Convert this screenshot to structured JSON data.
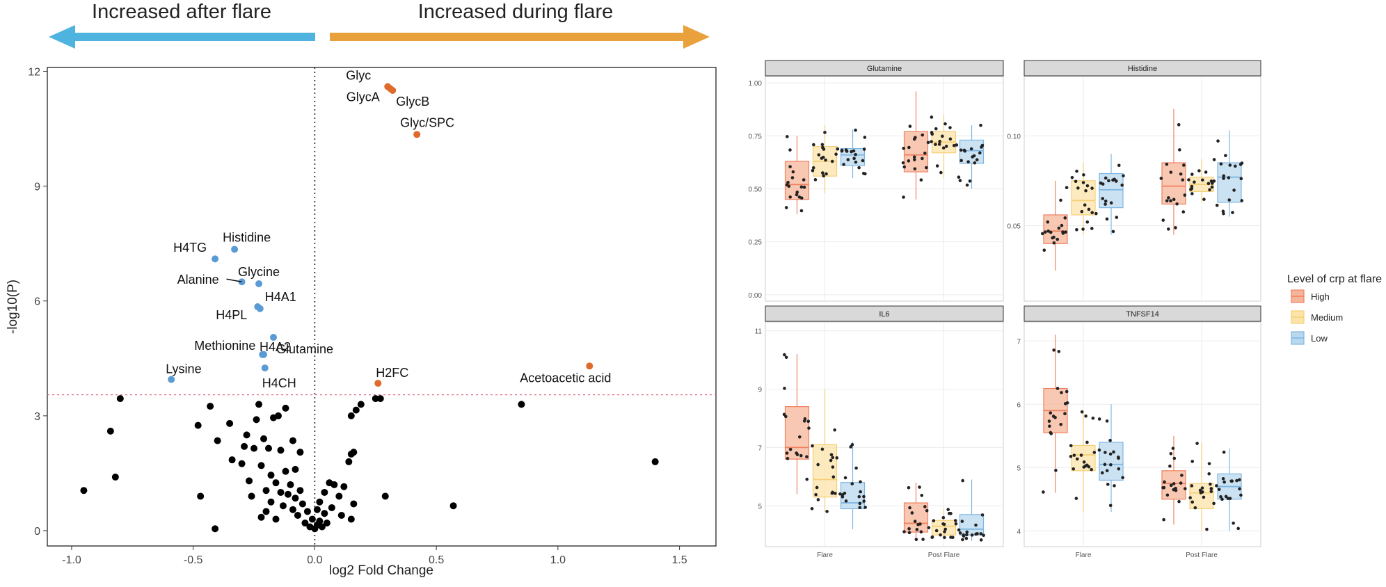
{
  "header": {
    "left_arrow_label": "Increased after flare",
    "right_arrow_label": "Increased during flare",
    "left_color": "#4FB3E0",
    "right_color": "#E9A23B"
  },
  "chart_data": [
    {
      "type": "scatter",
      "title": "",
      "xlabel": "log2 Fold Change",
      "ylabel": "-log10(P)",
      "xlim": [
        -1.1,
        1.65
      ],
      "ylim": [
        -0.4,
        12.1
      ],
      "xticks": [
        -1.0,
        -0.5,
        0.0,
        0.5,
        1.0,
        1.5
      ],
      "yticks": [
        0,
        3,
        6,
        9,
        12
      ],
      "significance_threshold": 3.55,
      "vertical_line_x": 0,
      "grid": false,
      "colors": {
        "up": "#E06A2B",
        "down": "#5B9BD5",
        "ns": "#000000",
        "threshold": "#E06A80"
      },
      "labeled_points": [
        {
          "label": "Glyc",
          "x": 0.3,
          "y": 11.6,
          "group": "up"
        },
        {
          "label": "GlycA",
          "x": 0.31,
          "y": 11.55,
          "group": "up"
        },
        {
          "label": "GlycB",
          "x": 0.32,
          "y": 11.5,
          "group": "up"
        },
        {
          "label": "Glyc/SPC",
          "x": 0.42,
          "y": 10.35,
          "group": "up"
        },
        {
          "label": "H2FC",
          "x": 0.26,
          "y": 3.85,
          "group": "up"
        },
        {
          "label": "Acetoacetic acid",
          "x": 1.13,
          "y": 4.3,
          "group": "up"
        },
        {
          "label": "Histidine",
          "x": -0.33,
          "y": 7.35,
          "group": "down"
        },
        {
          "label": "H4TG",
          "x": -0.41,
          "y": 7.1,
          "group": "down"
        },
        {
          "label": "Alanine",
          "x": -0.3,
          "y": 6.5,
          "group": "down"
        },
        {
          "label": "Glycine",
          "x": -0.23,
          "y": 6.45,
          "group": "down"
        },
        {
          "label": "H4PL",
          "x": -0.235,
          "y": 5.85,
          "group": "down"
        },
        {
          "label": "H4A1",
          "x": -0.225,
          "y": 5.8,
          "group": "down"
        },
        {
          "label": "H4A2",
          "x": -0.17,
          "y": 5.05,
          "group": "down"
        },
        {
          "label": "Methionine",
          "x": -0.215,
          "y": 4.6,
          "group": "down"
        },
        {
          "label": "Glutamine",
          "x": -0.21,
          "y": 4.6,
          "group": "down"
        },
        {
          "label": "H4CH",
          "x": -0.205,
          "y": 4.25,
          "group": "down"
        },
        {
          "label": "Lysine",
          "x": -0.59,
          "y": 3.95,
          "group": "down"
        }
      ],
      "ns_points": [
        [
          -0.95,
          1.05
        ],
        [
          -0.84,
          2.6
        ],
        [
          -0.82,
          1.4
        ],
        [
          -0.8,
          3.45
        ],
        [
          -0.48,
          2.75
        ],
        [
          -0.47,
          0.9
        ],
        [
          -0.43,
          3.25
        ],
        [
          -0.41,
          0.05
        ],
        [
          -0.4,
          2.35
        ],
        [
          -0.35,
          2.8
        ],
        [
          -0.34,
          1.85
        ],
        [
          -0.3,
          1.75
        ],
        [
          -0.29,
          2.2
        ],
        [
          -0.28,
          2.5
        ],
        [
          -0.27,
          1.3
        ],
        [
          -0.26,
          0.9
        ],
        [
          -0.25,
          2.15
        ],
        [
          -0.24,
          2.9
        ],
        [
          -0.23,
          3.3
        ],
        [
          -0.22,
          1.7
        ],
        [
          -0.22,
          0.35
        ],
        [
          -0.21,
          2.4
        ],
        [
          -0.2,
          1.05
        ],
        [
          -0.2,
          0.5
        ],
        [
          -0.19,
          2.15
        ],
        [
          -0.18,
          1.45
        ],
        [
          -0.18,
          0.75
        ],
        [
          -0.17,
          2.95
        ],
        [
          -0.16,
          1.25
        ],
        [
          -0.16,
          0.3
        ],
        [
          -0.15,
          3.0
        ],
        [
          -0.14,
          2.1
        ],
        [
          -0.14,
          1.0
        ],
        [
          -0.13,
          0.65
        ],
        [
          -0.12,
          1.55
        ],
        [
          -0.12,
          3.2
        ],
        [
          -0.11,
          0.95
        ],
        [
          -0.1,
          1.2
        ],
        [
          -0.09,
          0.55
        ],
        [
          -0.09,
          2.35
        ],
        [
          -0.08,
          0.85
        ],
        [
          -0.08,
          1.6
        ],
        [
          -0.07,
          0.4
        ],
        [
          -0.06,
          1.05
        ],
        [
          -0.06,
          2.05
        ],
        [
          -0.05,
          0.7
        ],
        [
          -0.04,
          0.2
        ],
        [
          -0.03,
          0.5
        ],
        [
          -0.02,
          0.1
        ],
        [
          -0.01,
          0.3
        ],
        [
          0.0,
          0.05
        ],
        [
          0.01,
          0.55
        ],
        [
          0.01,
          0.15
        ],
        [
          0.02,
          0.25
        ],
        [
          0.02,
          0.75
        ],
        [
          0.03,
          0.1
        ],
        [
          0.04,
          0.45
        ],
        [
          0.04,
          1.0
        ],
        [
          0.05,
          0.2
        ],
        [
          0.06,
          1.25
        ],
        [
          0.07,
          0.6
        ],
        [
          0.08,
          1.2
        ],
        [
          0.1,
          0.9
        ],
        [
          0.11,
          0.4
        ],
        [
          0.12,
          1.15
        ],
        [
          0.14,
          1.8
        ],
        [
          0.15,
          0.3
        ],
        [
          0.15,
          2.0
        ],
        [
          0.16,
          0.7
        ],
        [
          0.16,
          2.05
        ],
        [
          0.15,
          3.0
        ],
        [
          0.17,
          3.15
        ],
        [
          0.19,
          3.3
        ],
        [
          0.25,
          3.45
        ],
        [
          0.27,
          3.45
        ],
        [
          0.29,
          0.9
        ],
        [
          0.57,
          0.65
        ],
        [
          0.85,
          3.3
        ],
        [
          1.4,
          1.8
        ]
      ]
    },
    {
      "type": "box",
      "title": "Glutamine",
      "categories": [
        "Flare",
        "Post Flare"
      ],
      "ylim": [
        -0.03,
        1.03
      ],
      "yticks": [
        "0.00",
        "0.25",
        "0.50",
        "0.75",
        "1.00"
      ],
      "series": [
        {
          "name": "High",
          "values": [
            [
              0.38,
              0.45,
              0.52,
              0.63,
              0.75
            ],
            [
              0.45,
              0.58,
              0.66,
              0.77,
              0.96
            ]
          ]
        },
        {
          "name": "Medium",
          "values": [
            [
              0.48,
              0.56,
              0.63,
              0.7,
              0.8
            ],
            [
              0.55,
              0.67,
              0.72,
              0.77,
              0.85
            ]
          ]
        },
        {
          "name": "Low",
          "values": [
            [
              0.55,
              0.61,
              0.66,
              0.69,
              0.78
            ],
            [
              0.5,
              0.62,
              0.68,
              0.73,
              0.8
            ]
          ]
        }
      ]
    },
    {
      "type": "box",
      "title": "Histidine",
      "categories": [
        "Flare",
        "Post Flare"
      ],
      "ylim": [
        0.008,
        0.133
      ],
      "yticks": [
        "0.05",
        "0.10"
      ],
      "series": [
        {
          "name": "High",
          "values": [
            [
              0.025,
              0.04,
              0.047,
              0.056,
              0.075
            ],
            [
              0.045,
              0.062,
              0.072,
              0.085,
              0.115
            ]
          ]
        },
        {
          "name": "Medium",
          "values": [
            [
              0.045,
              0.056,
              0.064,
              0.075,
              0.085
            ],
            [
              0.063,
              0.069,
              0.073,
              0.077,
              0.087
            ]
          ]
        },
        {
          "name": "Low",
          "values": [
            [
              0.045,
              0.06,
              0.07,
              0.079,
              0.09
            ],
            [
              0.055,
              0.063,
              0.077,
              0.085,
              0.103
            ]
          ]
        }
      ]
    },
    {
      "type": "box",
      "title": "IL6",
      "categories": [
        "Flare",
        "Post Flare"
      ],
      "ylim": [
        3.6,
        11.3
      ],
      "yticks": [
        "5",
        "7",
        "9",
        "11"
      ],
      "series": [
        {
          "name": "High",
          "values": [
            [
              5.4,
              6.6,
              7.0,
              8.4,
              10.2
            ],
            [
              3.8,
              4.1,
              4.4,
              5.1,
              5.8
            ]
          ]
        },
        {
          "name": "Medium",
          "values": [
            [
              4.8,
              5.3,
              5.9,
              7.1,
              9.0
            ],
            [
              3.9,
              4.0,
              4.3,
              4.5,
              4.9
            ]
          ]
        },
        {
          "name": "Low",
          "values": [
            [
              4.2,
              4.9,
              5.1,
              5.8,
              7.2
            ],
            [
              3.8,
              4.0,
              4.2,
              4.7,
              5.9
            ]
          ]
        }
      ]
    },
    {
      "type": "box",
      "title": "TNFSF14",
      "categories": [
        "Flare",
        "Post Flare"
      ],
      "ylim": [
        3.75,
        7.3
      ],
      "yticks": [
        "4",
        "5",
        "6",
        "7"
      ],
      "series": [
        {
          "name": "High",
          "values": [
            [
              4.6,
              5.55,
              5.9,
              6.25,
              7.1
            ],
            [
              4.1,
              4.5,
              4.75,
              4.95,
              5.5
            ]
          ]
        },
        {
          "name": "Medium",
          "values": [
            [
              4.3,
              4.95,
              5.2,
              5.35,
              5.9
            ],
            [
              4.0,
              4.35,
              4.6,
              4.75,
              5.4
            ]
          ]
        },
        {
          "name": "Low",
          "values": [
            [
              4.3,
              4.8,
              5.05,
              5.4,
              6.0
            ],
            [
              4.0,
              4.5,
              4.7,
              4.9,
              5.3
            ]
          ]
        }
      ]
    }
  ],
  "legend": {
    "title": "Level of crp at flare",
    "placement": "right",
    "items": [
      {
        "name": "High",
        "fill": "#F5B59A",
        "stroke": "#F08060"
      },
      {
        "name": "Medium",
        "fill": "#FCE3A8",
        "stroke": "#F5CF76"
      },
      {
        "name": "Low",
        "fill": "#B9D8EE",
        "stroke": "#7EB6E3"
      }
    ]
  }
}
